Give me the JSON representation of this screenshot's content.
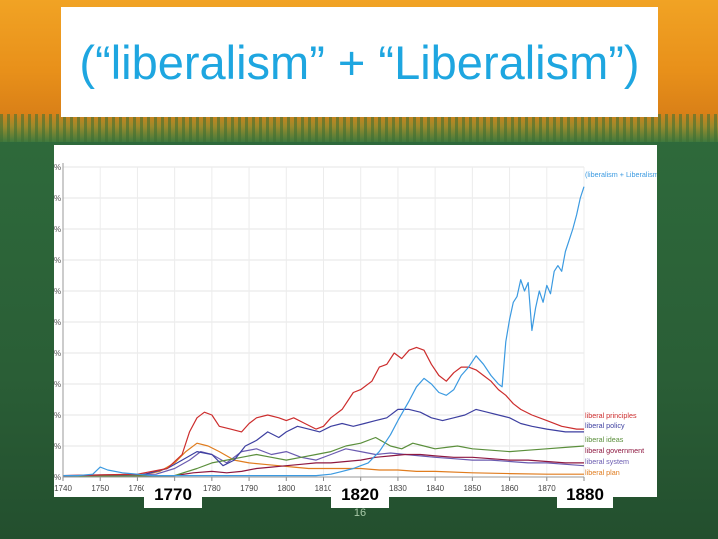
{
  "slide": {
    "title": "(“liberalism” + “Liberalism”)",
    "page_number": "16",
    "year_callouts": [
      "1770",
      "1820",
      "1880"
    ]
  },
  "colors": {
    "title": "#1ea6e0",
    "background_top": "#e8901a",
    "background_bottom": "#2a5e36"
  },
  "chart_data": {
    "type": "line",
    "title": "",
    "xlabel": "",
    "ylabel": "",
    "xlim": [
      1740,
      1880
    ],
    "x_ticks": [
      1740,
      1750,
      1760,
      1770,
      1780,
      1790,
      1800,
      1810,
      1820,
      1830,
      1840,
      1850,
      1860,
      1870,
      1880
    ],
    "y_tick_labels": [
      "%",
      "%",
      "%",
      "%",
      "%",
      "%",
      "%",
      "%",
      "%",
      "%",
      "%"
    ],
    "ylim": [
      0,
      11
    ],
    "grid": true,
    "legend": "inline labels at right end of each line",
    "series": [
      {
        "name": "(liberalism + Liberalism)",
        "color": "#3b9ae1",
        "points": [
          [
            1740,
            0.05
          ],
          [
            1744,
            0.05
          ],
          [
            1748,
            0.1
          ],
          [
            1750,
            0.35
          ],
          [
            1752,
            0.25
          ],
          [
            1756,
            0.15
          ],
          [
            1760,
            0.1
          ],
          [
            1764,
            0.05
          ],
          [
            1768,
            0.05
          ],
          [
            1772,
            0.05
          ],
          [
            1776,
            0.05
          ],
          [
            1780,
            0.05
          ],
          [
            1784,
            0.05
          ],
          [
            1788,
            0.05
          ],
          [
            1792,
            0.05
          ],
          [
            1796,
            0.05
          ],
          [
            1800,
            0.05
          ],
          [
            1804,
            0.05
          ],
          [
            1808,
            0.05
          ],
          [
            1812,
            0.1
          ],
          [
            1815,
            0.2
          ],
          [
            1818,
            0.3
          ],
          [
            1820,
            0.4
          ],
          [
            1822,
            0.5
          ],
          [
            1825,
            0.9
          ],
          [
            1828,
            1.5
          ],
          [
            1830,
            2.0
          ],
          [
            1833,
            2.7
          ],
          [
            1835,
            3.2
          ],
          [
            1837,
            3.5
          ],
          [
            1839,
            3.3
          ],
          [
            1841,
            3.0
          ],
          [
            1843,
            2.9
          ],
          [
            1845,
            3.1
          ],
          [
            1847,
            3.6
          ],
          [
            1849,
            3.9
          ],
          [
            1851,
            4.3
          ],
          [
            1853,
            4.0
          ],
          [
            1855,
            3.6
          ],
          [
            1857,
            3.3
          ],
          [
            1858,
            3.2
          ],
          [
            1859,
            4.8
          ],
          [
            1860,
            5.6
          ],
          [
            1861,
            6.2
          ],
          [
            1862,
            6.4
          ],
          [
            1863,
            7.0
          ],
          [
            1864,
            6.6
          ],
          [
            1865,
            6.9
          ],
          [
            1866,
            5.2
          ],
          [
            1867,
            6.0
          ],
          [
            1868,
            6.6
          ],
          [
            1869,
            6.2
          ],
          [
            1870,
            6.8
          ],
          [
            1871,
            6.5
          ],
          [
            1872,
            7.3
          ],
          [
            1873,
            7.5
          ],
          [
            1874,
            7.3
          ],
          [
            1875,
            8.0
          ],
          [
            1876,
            8.4
          ],
          [
            1877,
            8.8
          ],
          [
            1878,
            9.3
          ],
          [
            1879,
            9.9
          ],
          [
            1880,
            10.3
          ]
        ]
      },
      {
        "name": "liberal principles",
        "color": "#cc2d2d",
        "points": [
          [
            1740,
            0.05
          ],
          [
            1760,
            0.1
          ],
          [
            1768,
            0.3
          ],
          [
            1772,
            0.8
          ],
          [
            1774,
            1.6
          ],
          [
            1776,
            2.1
          ],
          [
            1778,
            2.3
          ],
          [
            1780,
            2.2
          ],
          [
            1782,
            1.8
          ],
          [
            1785,
            1.7
          ],
          [
            1788,
            1.6
          ],
          [
            1790,
            1.9
          ],
          [
            1792,
            2.1
          ],
          [
            1795,
            2.2
          ],
          [
            1798,
            2.1
          ],
          [
            1800,
            2.0
          ],
          [
            1802,
            2.1
          ],
          [
            1805,
            1.9
          ],
          [
            1808,
            1.7
          ],
          [
            1810,
            1.8
          ],
          [
            1812,
            2.1
          ],
          [
            1815,
            2.4
          ],
          [
            1818,
            3.0
          ],
          [
            1820,
            3.1
          ],
          [
            1823,
            3.4
          ],
          [
            1825,
            3.9
          ],
          [
            1827,
            4.0
          ],
          [
            1829,
            4.4
          ],
          [
            1831,
            4.2
          ],
          [
            1833,
            4.5
          ],
          [
            1835,
            4.6
          ],
          [
            1837,
            4.5
          ],
          [
            1839,
            4.0
          ],
          [
            1841,
            3.6
          ],
          [
            1843,
            3.4
          ],
          [
            1845,
            3.7
          ],
          [
            1847,
            3.9
          ],
          [
            1849,
            3.9
          ],
          [
            1851,
            3.8
          ],
          [
            1853,
            3.6
          ],
          [
            1855,
            3.4
          ],
          [
            1857,
            3.1
          ],
          [
            1859,
            2.9
          ],
          [
            1861,
            2.6
          ],
          [
            1863,
            2.4
          ],
          [
            1866,
            2.2
          ],
          [
            1870,
            2.0
          ],
          [
            1874,
            1.8
          ],
          [
            1878,
            1.7
          ],
          [
            1880,
            1.7
          ]
        ]
      },
      {
        "name": "liberal policy",
        "color": "#3d3fa0",
        "points": [
          [
            1740,
            0.05
          ],
          [
            1762,
            0.1
          ],
          [
            1768,
            0.3
          ],
          [
            1772,
            0.6
          ],
          [
            1776,
            0.9
          ],
          [
            1780,
            0.8
          ],
          [
            1783,
            0.4
          ],
          [
            1786,
            0.6
          ],
          [
            1789,
            1.1
          ],
          [
            1792,
            1.3
          ],
          [
            1795,
            1.6
          ],
          [
            1798,
            1.4
          ],
          [
            1800,
            1.6
          ],
          [
            1803,
            1.8
          ],
          [
            1806,
            1.7
          ],
          [
            1809,
            1.6
          ],
          [
            1812,
            1.8
          ],
          [
            1815,
            1.9
          ],
          [
            1818,
            1.8
          ],
          [
            1821,
            1.9
          ],
          [
            1824,
            2.0
          ],
          [
            1827,
            2.1
          ],
          [
            1830,
            2.4
          ],
          [
            1833,
            2.4
          ],
          [
            1836,
            2.3
          ],
          [
            1839,
            2.1
          ],
          [
            1842,
            2.0
          ],
          [
            1845,
            2.1
          ],
          [
            1848,
            2.2
          ],
          [
            1851,
            2.4
          ],
          [
            1854,
            2.3
          ],
          [
            1857,
            2.2
          ],
          [
            1860,
            2.1
          ],
          [
            1863,
            1.9
          ],
          [
            1866,
            1.8
          ],
          [
            1870,
            1.7
          ],
          [
            1875,
            1.6
          ],
          [
            1880,
            1.6
          ]
        ]
      },
      {
        "name": "liberal ideas",
        "color": "#5b8f3c",
        "points": [
          [
            1740,
            0.02
          ],
          [
            1770,
            0.05
          ],
          [
            1776,
            0.3
          ],
          [
            1780,
            0.5
          ],
          [
            1784,
            0.6
          ],
          [
            1788,
            0.7
          ],
          [
            1792,
            0.8
          ],
          [
            1796,
            0.7
          ],
          [
            1800,
            0.6
          ],
          [
            1804,
            0.7
          ],
          [
            1808,
            0.8
          ],
          [
            1812,
            0.9
          ],
          [
            1816,
            1.1
          ],
          [
            1820,
            1.2
          ],
          [
            1824,
            1.4
          ],
          [
            1828,
            1.1
          ],
          [
            1831,
            1.0
          ],
          [
            1834,
            1.2
          ],
          [
            1837,
            1.1
          ],
          [
            1840,
            1.0
          ],
          [
            1843,
            1.05
          ],
          [
            1846,
            1.1
          ],
          [
            1850,
            1.0
          ],
          [
            1855,
            0.95
          ],
          [
            1860,
            0.9
          ],
          [
            1865,
            0.95
          ],
          [
            1870,
            1.0
          ],
          [
            1875,
            1.05
          ],
          [
            1880,
            1.1
          ]
        ]
      },
      {
        "name": "liberal government",
        "color": "#8e1840",
        "points": [
          [
            1740,
            0.02
          ],
          [
            1770,
            0.05
          ],
          [
            1775,
            0.15
          ],
          [
            1780,
            0.2
          ],
          [
            1784,
            0.15
          ],
          [
            1788,
            0.2
          ],
          [
            1792,
            0.3
          ],
          [
            1796,
            0.35
          ],
          [
            1800,
            0.4
          ],
          [
            1804,
            0.45
          ],
          [
            1808,
            0.5
          ],
          [
            1812,
            0.5
          ],
          [
            1816,
            0.55
          ],
          [
            1820,
            0.6
          ],
          [
            1824,
            0.7
          ],
          [
            1828,
            0.75
          ],
          [
            1832,
            0.8
          ],
          [
            1836,
            0.8
          ],
          [
            1840,
            0.75
          ],
          [
            1845,
            0.7
          ],
          [
            1850,
            0.7
          ],
          [
            1855,
            0.65
          ],
          [
            1860,
            0.6
          ],
          [
            1865,
            0.6
          ],
          [
            1870,
            0.55
          ],
          [
            1875,
            0.5
          ],
          [
            1880,
            0.5
          ]
        ]
      },
      {
        "name": "liberal system",
        "color": "#6a5bb0",
        "points": [
          [
            1740,
            0.02
          ],
          [
            1765,
            0.1
          ],
          [
            1770,
            0.3
          ],
          [
            1774,
            0.6
          ],
          [
            1777,
            0.9
          ],
          [
            1780,
            0.8
          ],
          [
            1784,
            0.5
          ],
          [
            1788,
            0.9
          ],
          [
            1792,
            1.0
          ],
          [
            1796,
            0.8
          ],
          [
            1800,
            0.9
          ],
          [
            1804,
            0.7
          ],
          [
            1808,
            0.6
          ],
          [
            1812,
            0.8
          ],
          [
            1816,
            1.0
          ],
          [
            1820,
            0.9
          ],
          [
            1824,
            0.8
          ],
          [
            1828,
            0.85
          ],
          [
            1832,
            0.8
          ],
          [
            1836,
            0.75
          ],
          [
            1840,
            0.7
          ],
          [
            1845,
            0.65
          ],
          [
            1850,
            0.6
          ],
          [
            1855,
            0.6
          ],
          [
            1860,
            0.55
          ],
          [
            1865,
            0.5
          ],
          [
            1870,
            0.5
          ],
          [
            1875,
            0.45
          ],
          [
            1880,
            0.4
          ]
        ]
      },
      {
        "name": "liberal plan",
        "color": "#e07c1e",
        "points": [
          [
            1740,
            0.02
          ],
          [
            1760,
            0.05
          ],
          [
            1766,
            0.2
          ],
          [
            1770,
            0.5
          ],
          [
            1773,
            0.9
          ],
          [
            1776,
            1.2
          ],
          [
            1779,
            1.1
          ],
          [
            1782,
            0.9
          ],
          [
            1786,
            0.6
          ],
          [
            1790,
            0.5
          ],
          [
            1794,
            0.45
          ],
          [
            1798,
            0.4
          ],
          [
            1802,
            0.35
          ],
          [
            1806,
            0.3
          ],
          [
            1810,
            0.3
          ],
          [
            1815,
            0.3
          ],
          [
            1820,
            0.3
          ],
          [
            1825,
            0.25
          ],
          [
            1830,
            0.25
          ],
          [
            1835,
            0.2
          ],
          [
            1840,
            0.2
          ],
          [
            1850,
            0.15
          ],
          [
            1860,
            0.12
          ],
          [
            1870,
            0.1
          ],
          [
            1880,
            0.1
          ]
        ]
      }
    ]
  }
}
